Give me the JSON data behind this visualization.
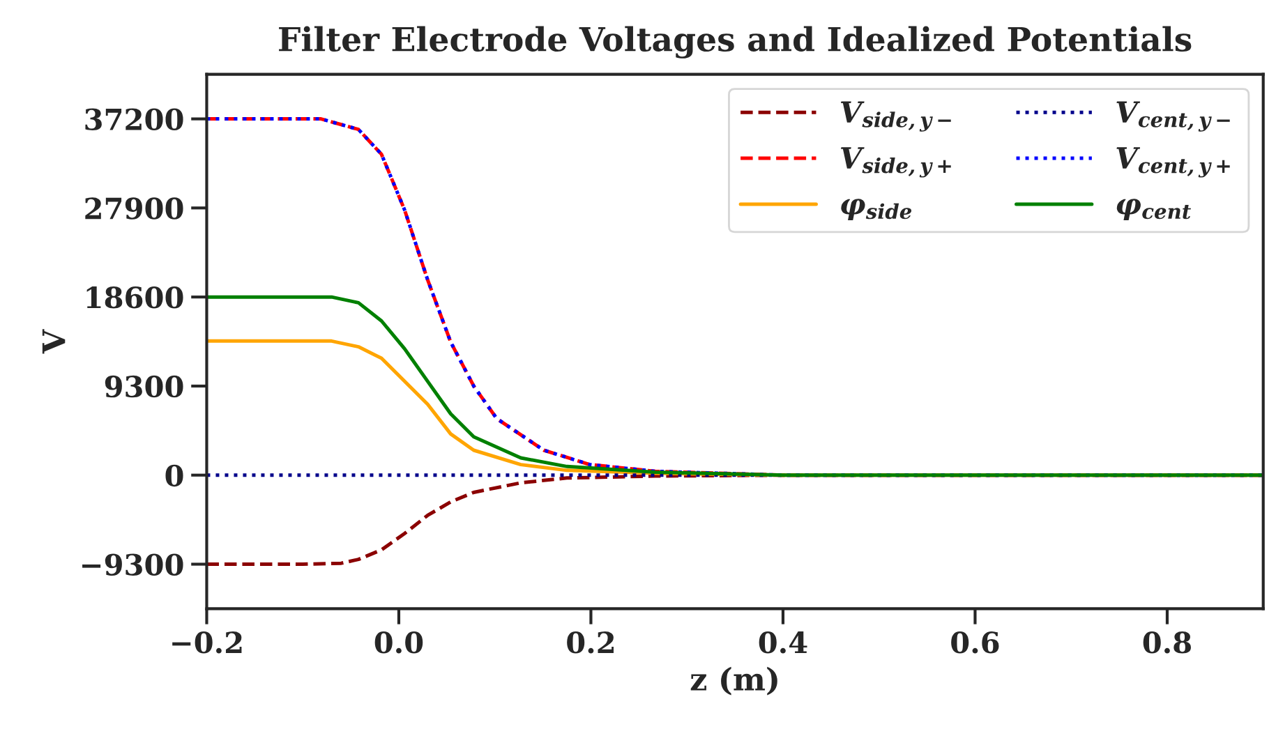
{
  "chart_data": {
    "type": "line",
    "title": "Filter Electrode Voltages and Idealized Potentials",
    "xlabel": "z (m)",
    "ylabel": "V",
    "xlim": [
      -0.2,
      0.9
    ],
    "xticks": [
      -0.2,
      {
        "value": 0,
        "label": "0.0"
      },
      0.2,
      0.4,
      0.6,
      0.8
    ],
    "ylim": [
      -13950,
      41850
    ],
    "yticks": [
      -9300,
      0,
      9300,
      18600,
      27900,
      37200
    ],
    "grid": false,
    "legend": "top right",
    "marker": "none",
    "series": [
      {
        "name": "V$_{side,y−}$",
        "color": "#8b0000",
        "line_style": "dashed",
        "x": [
          -0.2,
          -0.1,
          -0.06,
          -0.042,
          -0.018,
          0.006,
          0.03,
          0.054,
          0.078,
          0.127,
          0.175,
          0.267,
          0.4,
          0.9
        ],
        "values": [
          -9300,
          -9300,
          -9200,
          -8800,
          -7800,
          -6100,
          -4200,
          -2800,
          -1800,
          -800,
          -300,
          -100,
          0,
          0
        ]
      },
      {
        "name": "V$_{side,y+}$",
        "color": "#ff0000",
        "line_style": "dashed",
        "x": [
          -0.2,
          -0.081,
          -0.042,
          -0.018,
          0.006,
          0.03,
          0.054,
          0.078,
          0.102,
          0.151,
          0.199,
          0.267,
          0.4,
          0.9
        ],
        "values": [
          37200,
          37200,
          36100,
          33500,
          27700,
          20400,
          13900,
          9300,
          5900,
          2600,
          1100,
          400,
          0,
          0
        ]
      },
      {
        "name": "φ$_{side}$",
        "color": "#ffa500",
        "line_style": "solid",
        "x": [
          -0.2,
          -0.07,
          -0.042,
          -0.018,
          0.006,
          0.03,
          0.054,
          0.078,
          0.127,
          0.175,
          0.267,
          0.4,
          0.9
        ],
        "values": [
          14000,
          14000,
          13400,
          12200,
          9800,
          7400,
          4300,
          2600,
          1100,
          500,
          200,
          0,
          0
        ]
      },
      {
        "name": "V$_{cent,y−}$",
        "color": "#00008b",
        "line_style": "dotted",
        "x": [
          -0.2,
          0.9
        ],
        "values": [
          0,
          0
        ]
      },
      {
        "name": "V$_{cent,y+}$",
        "color": "#0000ff",
        "line_style": "dotted",
        "x": [
          -0.2,
          -0.081,
          -0.042,
          -0.018,
          0.006,
          0.03,
          0.054,
          0.078,
          0.102,
          0.151,
          0.199,
          0.267,
          0.4,
          0.9
        ],
        "values": [
          37200,
          37200,
          36100,
          33500,
          27700,
          20400,
          13900,
          9300,
          5900,
          2600,
          1100,
          400,
          0,
          0
        ]
      },
      {
        "name": "φ$_{cent}$",
        "color": "#008000",
        "line_style": "solid",
        "x": [
          -0.2,
          -0.07,
          -0.042,
          -0.018,
          0.006,
          0.03,
          0.054,
          0.078,
          0.127,
          0.175,
          0.267,
          0.4,
          0.9
        ],
        "values": [
          18600,
          18600,
          18000,
          16100,
          13200,
          9800,
          6400,
          4000,
          1800,
          900,
          300,
          0,
          0
        ]
      }
    ]
  }
}
